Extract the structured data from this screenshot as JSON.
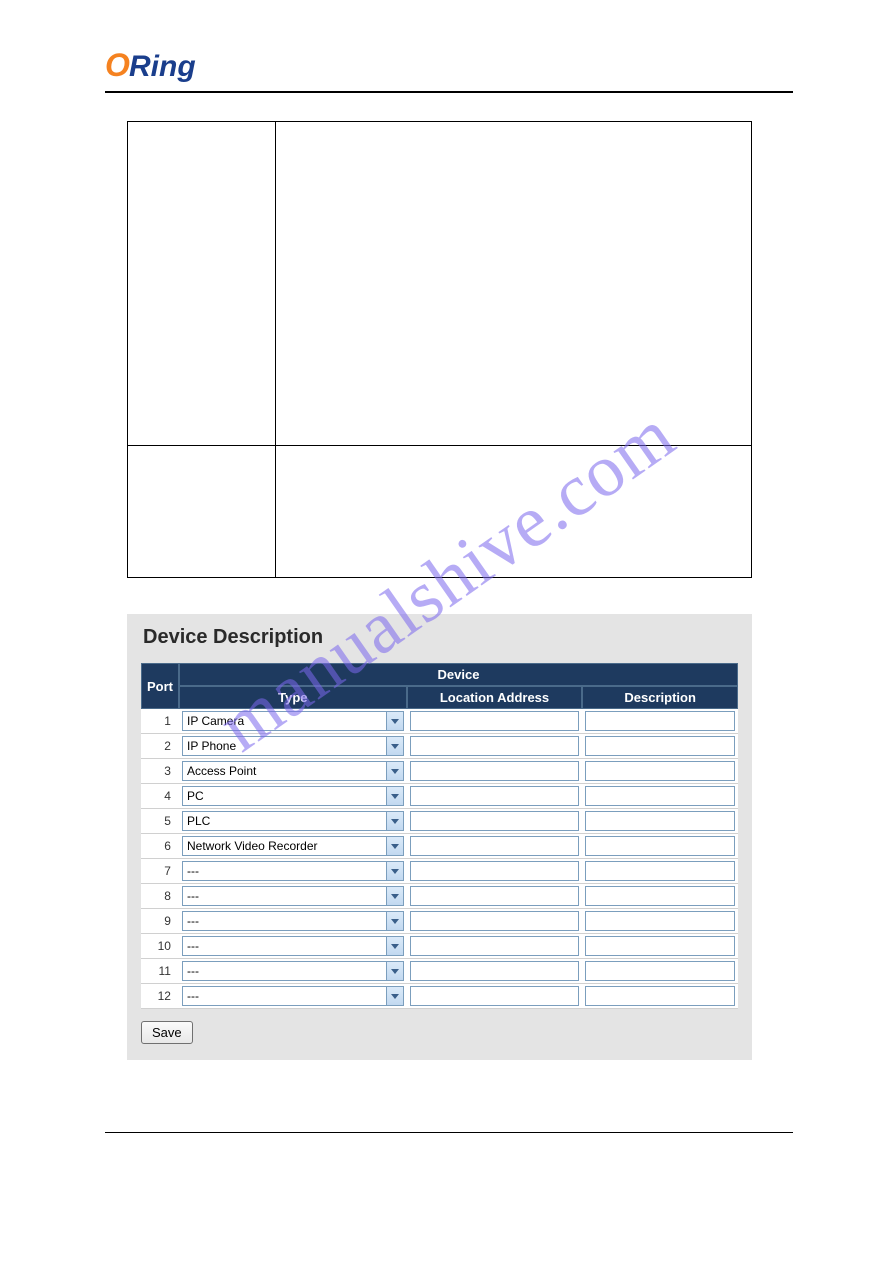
{
  "logo": {
    "brand_o": "O",
    "brand_rest": "Ring"
  },
  "watermark_text": "manualshive.com",
  "panel_title": "Device Description",
  "device_table": {
    "headers": {
      "port": "Port",
      "device": "Device",
      "type": "Type",
      "location": "Location Address",
      "description": "Description"
    },
    "rows": [
      {
        "port": "1",
        "type": "IP Camera",
        "location": "",
        "description": ""
      },
      {
        "port": "2",
        "type": "IP Phone",
        "location": "",
        "description": ""
      },
      {
        "port": "3",
        "type": "Access Point",
        "location": "",
        "description": ""
      },
      {
        "port": "4",
        "type": "PC",
        "location": "",
        "description": ""
      },
      {
        "port": "5",
        "type": "PLC",
        "location": "",
        "description": ""
      },
      {
        "port": "6",
        "type": "Network Video Recorder",
        "location": "",
        "description": ""
      },
      {
        "port": "7",
        "type": "---",
        "location": "",
        "description": ""
      },
      {
        "port": "8",
        "type": "---",
        "location": "",
        "description": ""
      },
      {
        "port": "9",
        "type": "---",
        "location": "",
        "description": ""
      },
      {
        "port": "10",
        "type": "---",
        "location": "",
        "description": ""
      },
      {
        "port": "11",
        "type": "---",
        "location": "",
        "description": ""
      },
      {
        "port": "12",
        "type": "---",
        "location": "",
        "description": ""
      }
    ]
  },
  "save_label": "Save",
  "colors": {
    "header_bg": "#1e3a5f",
    "header_text": "#ffffff",
    "panel_bg": "#e4e4e4",
    "input_border": "#7b9ebd",
    "arrow_bg_top": "#dbeaf9",
    "arrow_bg_bot": "#c2d9f0",
    "watermark": "#7b68ee",
    "logo_o": "#f58220",
    "logo_rest": "#1a3e8c"
  }
}
